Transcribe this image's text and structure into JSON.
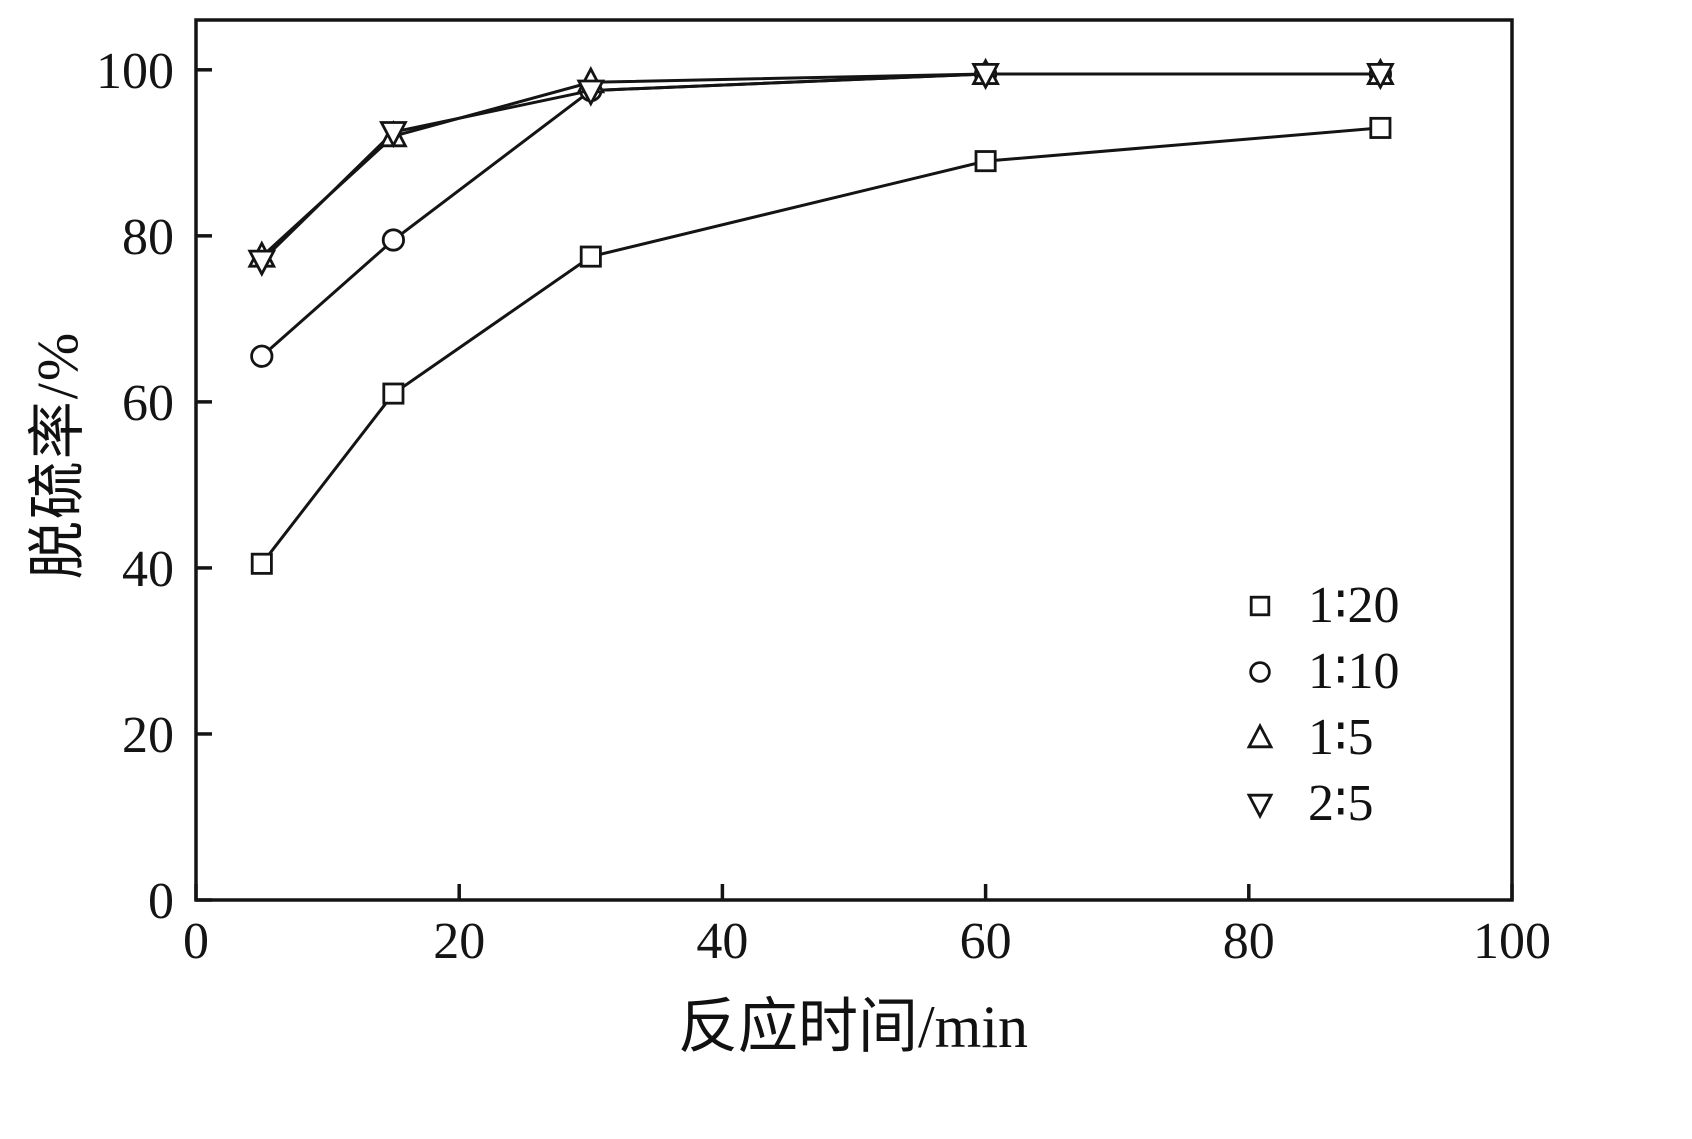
{
  "chart_data": {
    "type": "line",
    "x": [
      5,
      15,
      30,
      60,
      90
    ],
    "series": [
      {
        "name": "1∶20",
        "marker": "square",
        "values": [
          40.5,
          61.0,
          77.5,
          89.0,
          93.0
        ]
      },
      {
        "name": "1∶10",
        "marker": "circle",
        "values": [
          65.5,
          79.5,
          97.5,
          99.5,
          99.5
        ]
      },
      {
        "name": "1∶5",
        "marker": "triangle-up",
        "values": [
          77.5,
          92.0,
          98.5,
          99.5,
          99.5
        ]
      },
      {
        "name": "2∶5",
        "marker": "triangle-down",
        "values": [
          77.0,
          92.5,
          97.5,
          99.5,
          99.5
        ]
      }
    ],
    "title": "",
    "xlabel": "反应时间/min",
    "ylabel": "脱硫率/%",
    "xlim": [
      0,
      100
    ],
    "ylim": [
      0,
      106
    ],
    "xticks": [
      0,
      20,
      40,
      60,
      80,
      100
    ],
    "yticks": [
      0,
      20,
      40,
      60,
      80,
      100
    ],
    "grid": false,
    "legend_position": "lower right",
    "line_color": "#141414",
    "marker_fill": "#ffffff"
  }
}
